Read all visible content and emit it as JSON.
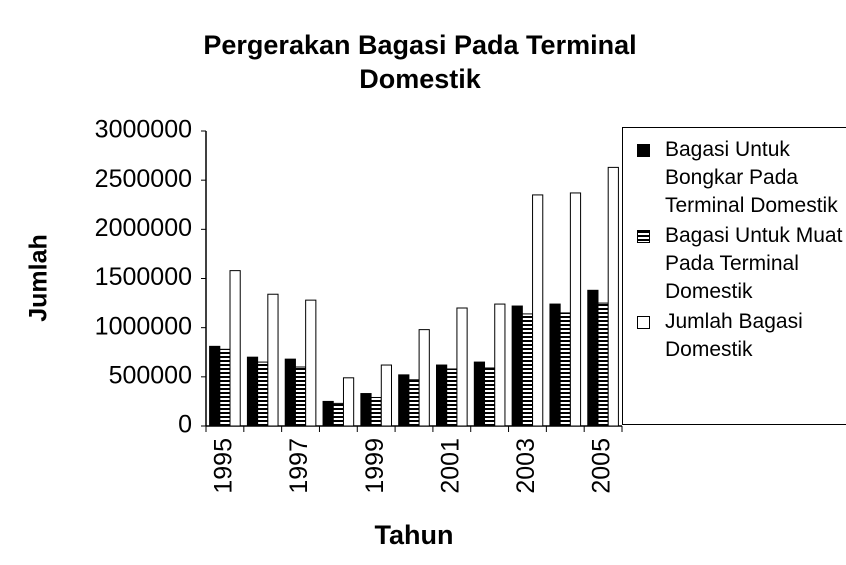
{
  "chart_data": {
    "type": "bar",
    "title": "Pergerakan Bagasi Pada Terminal Domestik",
    "x_label": "Tahun",
    "y_label": "Jumlah",
    "categories": [
      "1995",
      null,
      "1997",
      null,
      "1999",
      null,
      "2001",
      null,
      "2003",
      null,
      "2005"
    ],
    "series": [
      {
        "name": "Bagasi Untuk Bongkar Pada Terminal Domestik",
        "color": "#000000",
        "pattern": "solid",
        "values": [
          810000,
          700000,
          680000,
          250000,
          330000,
          520000,
          620000,
          650000,
          1220000,
          1240000,
          1380000
        ]
      },
      {
        "name": "Bagasi Untuk Muat Pada Terminal Domestik",
        "color": "#000000",
        "pattern": "striped",
        "values": [
          780000,
          650000,
          600000,
          230000,
          290000,
          470000,
          580000,
          590000,
          1140000,
          1150000,
          1250000
        ]
      },
      {
        "name": "Jumlah Bagasi Domestik",
        "color": "#ffffff",
        "pattern": "solid",
        "values": [
          1580000,
          1340000,
          1280000,
          490000,
          620000,
          980000,
          1200000,
          1240000,
          2350000,
          2370000,
          2630000
        ]
      }
    ],
    "ylim": [
      0,
      3000000
    ],
    "yticks": [
      0,
      500000,
      1000000,
      1500000,
      2000000,
      2500000,
      3000000
    ],
    "grid": false
  }
}
